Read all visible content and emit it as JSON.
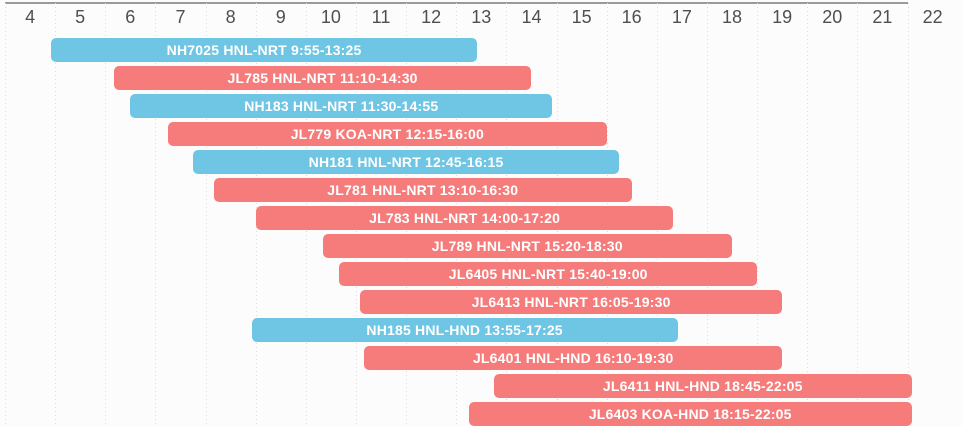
{
  "chart_data": {
    "type": "timeline",
    "title": "",
    "legend": "none",
    "grid": true,
    "x_axis": {
      "min": 4,
      "max": 22,
      "unit": "hour",
      "ticks": [
        "4",
        "5",
        "6",
        "7",
        "8",
        "9",
        "10",
        "11",
        "12",
        "13",
        "14",
        "15",
        "16",
        "17",
        "18",
        "19",
        "20",
        "21",
        "22"
      ],
      "tick_label_position": "centered-in-cell"
    },
    "series_colors": {
      "NH": "#6EC6E4",
      "JL": "#F67C7C"
    },
    "flights": [
      {
        "label": "NH7025 HNL-NRT 9:55-13:25",
        "flight": "NH7025",
        "route": "HNL-NRT",
        "times": "9:55-13:25",
        "airline": "NH",
        "bar_start": 4.917,
        "bar_end": 13.417
      },
      {
        "label": "JL785 HNL-NRT 11:10-14:30",
        "flight": "JL785",
        "route": "HNL-NRT",
        "times": "11:10-14:30",
        "airline": "JL",
        "bar_start": 6.167,
        "bar_end": 14.5
      },
      {
        "label": "NH183 HNL-NRT 11:30-14:55",
        "flight": "NH183",
        "route": "HNL-NRT",
        "times": "11:30-14:55",
        "airline": "NH",
        "bar_start": 6.5,
        "bar_end": 14.917
      },
      {
        "label": "JL779 KOA-NRT 12:15-16:00",
        "flight": "JL779",
        "route": "KOA-NRT",
        "times": "12:15-16:00",
        "airline": "JL",
        "bar_start": 7.25,
        "bar_end": 16.0
      },
      {
        "label": "NH181 HNL-NRT 12:45-16:15",
        "flight": "NH181",
        "route": "HNL-NRT",
        "times": "12:45-16:15",
        "airline": "NH",
        "bar_start": 7.75,
        "bar_end": 16.25
      },
      {
        "label": "JL781 HNL-NRT 13:10-16:30",
        "flight": "JL781",
        "route": "HNL-NRT",
        "times": "13:10-16:30",
        "airline": "JL",
        "bar_start": 8.167,
        "bar_end": 16.5
      },
      {
        "label": "JL783 HNL-NRT 14:00-17:20",
        "flight": "JL783",
        "route": "HNL-NRT",
        "times": "14:00-17:20",
        "airline": "JL",
        "bar_start": 9.0,
        "bar_end": 17.333
      },
      {
        "label": "JL789 HNL-NRT 15:20-18:30",
        "flight": "JL789",
        "route": "HNL-NRT",
        "times": "15:20-18:30",
        "airline": "JL",
        "bar_start": 10.333,
        "bar_end": 18.5
      },
      {
        "label": "JL6405 HNL-NRT 15:40-19:00",
        "flight": "JL6405",
        "route": "HNL-NRT",
        "times": "15:40-19:00",
        "airline": "JL",
        "bar_start": 10.667,
        "bar_end": 19.0
      },
      {
        "label": "JL6413 HNL-NRT 16:05-19:30",
        "flight": "JL6413",
        "route": "HNL-NRT",
        "times": "16:05-19:30",
        "airline": "JL",
        "bar_start": 11.083,
        "bar_end": 19.5
      },
      {
        "label": "NH185 HNL-HND 13:55-17:25",
        "flight": "NH185",
        "route": "HNL-HND",
        "times": "13:55-17:25",
        "airline": "NH",
        "bar_start": 8.917,
        "bar_end": 17.417
      },
      {
        "label": "JL6401 HNL-HND 16:10-19:30",
        "flight": "JL6401",
        "route": "HNL-HND",
        "times": "16:10-19:30",
        "airline": "JL",
        "bar_start": 11.167,
        "bar_end": 19.5
      },
      {
        "label": "JL6411 HNL-HND 18:45-22:05",
        "flight": "JL6411",
        "route": "HNL-HND",
        "times": "18:45-22:05",
        "airline": "JL",
        "bar_start": 13.75,
        "bar_end": 22.083
      },
      {
        "label": "JL6403 KOA-HND 18:15-22:05",
        "flight": "JL6403",
        "route": "KOA-HND",
        "times": "18:15-22:05",
        "airline": "JL",
        "bar_start": 13.25,
        "bar_end": 22.083
      }
    ]
  },
  "colors": {
    "background": "#fcfcfc",
    "axis_text": "#4f4f4f",
    "bar_text": "#ffffff",
    "gridline": "#dcdcdc",
    "top_border": "#9a9a9a"
  }
}
